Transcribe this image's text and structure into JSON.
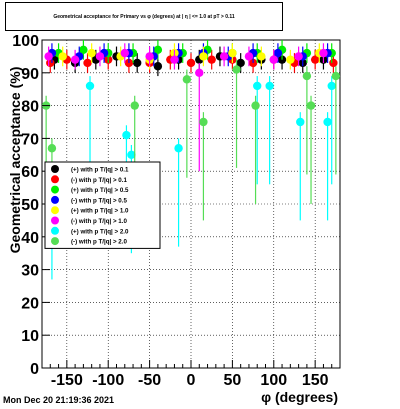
{
  "timestamp": "Mon Dec 20 21:19:36 2021",
  "chart_data": {
    "type": "scatter",
    "title": "Geometrical acceptance for Primary vs φ (degrees) at | η | <= 1.0 at pT > 0.11",
    "xlabel": "φ (degrees)",
    "ylabel": "Geometrical acceptance (%)",
    "xlim": [
      -180,
      180
    ],
    "ylim": [
      0,
      100
    ],
    "xticks": [
      -150,
      -100,
      -50,
      0,
      50,
      100,
      150
    ],
    "yticks": [
      0,
      10,
      20,
      30,
      40,
      50,
      60,
      70,
      80,
      90,
      100
    ],
    "grid": true,
    "legend_position": "left-middle",
    "series": [
      {
        "name": "(+) with p T/|q| > 0.1",
        "color": "#000000",
        "x": [
          -165,
          -140,
          -115,
          -90,
          -65,
          -40,
          -15,
          10,
          35,
          60,
          85,
          110,
          135,
          160
        ],
        "y": [
          94,
          93,
          94,
          95,
          93,
          92,
          94,
          94,
          95,
          93,
          94,
          94,
          93,
          94
        ]
      },
      {
        "name": "(-) with p T/|q| > 0.1",
        "color": "#ff0000",
        "x": [
          -170,
          -150,
          -125,
          -100,
          -75,
          -50,
          -25,
          0,
          25,
          50,
          75,
          100,
          125,
          150,
          172
        ],
        "y": [
          93,
          94,
          93,
          94,
          93,
          93,
          94,
          93,
          94,
          94,
          93,
          94,
          93,
          94,
          93
        ]
      },
      {
        "name": "(+) with p T/|q| > 0.5",
        "color": "#00ee00",
        "x": [
          -160,
          -130,
          -100,
          -70,
          -40,
          -10,
          20,
          50,
          80,
          110,
          140,
          170
        ],
        "y": [
          96,
          97,
          96,
          96,
          97,
          96,
          97,
          96,
          96,
          97,
          96,
          96
        ]
      },
      {
        "name": "(-) with p T/|q| > 0.5",
        "color": "#0000ff",
        "x": [
          -168,
          -135,
          -105,
          -75,
          -45,
          -15,
          15,
          45,
          75,
          105,
          135,
          165
        ],
        "y": [
          96,
          95,
          96,
          96,
          95,
          96,
          96,
          95,
          96,
          96,
          95,
          96
        ]
      },
      {
        "name": "(+) with p T/|q| > 1.0",
        "color": "#ffff00",
        "x": [
          -155,
          -120,
          -85,
          -50,
          -20,
          15,
          50,
          85,
          120,
          155
        ],
        "y": [
          95,
          96,
          95,
          94,
          96,
          95,
          96,
          95,
          94,
          96
        ]
      },
      {
        "name": "(-) with p T/|q| > 1.0",
        "color": "#ff00ff",
        "x": [
          -172,
          -140,
          -110,
          -80,
          -50,
          -20,
          10,
          40,
          70,
          100,
          130,
          160
        ],
        "y": [
          95,
          94,
          95,
          96,
          95,
          94,
          90,
          95,
          95,
          94,
          95,
          96
        ]
      },
      {
        "name": "(+) with p T/|q| > 2.0",
        "color": "#00ffff",
        "x": [
          -168,
          -122,
          -78,
          -72,
          -15,
          80,
          95,
          132,
          165,
          170
        ],
        "y": [
          57,
          86,
          71,
          65,
          67,
          86,
          86,
          75,
          75,
          86
        ]
      },
      {
        "name": "(-) with p T/|q| > 2.0",
        "color": "#55dd55",
        "x": [
          -175,
          -168,
          -68,
          -5,
          15,
          55,
          78,
          140,
          145,
          175
        ],
        "y": [
          80,
          67,
          80,
          88,
          75,
          91,
          80,
          89,
          80,
          89
        ]
      }
    ]
  }
}
